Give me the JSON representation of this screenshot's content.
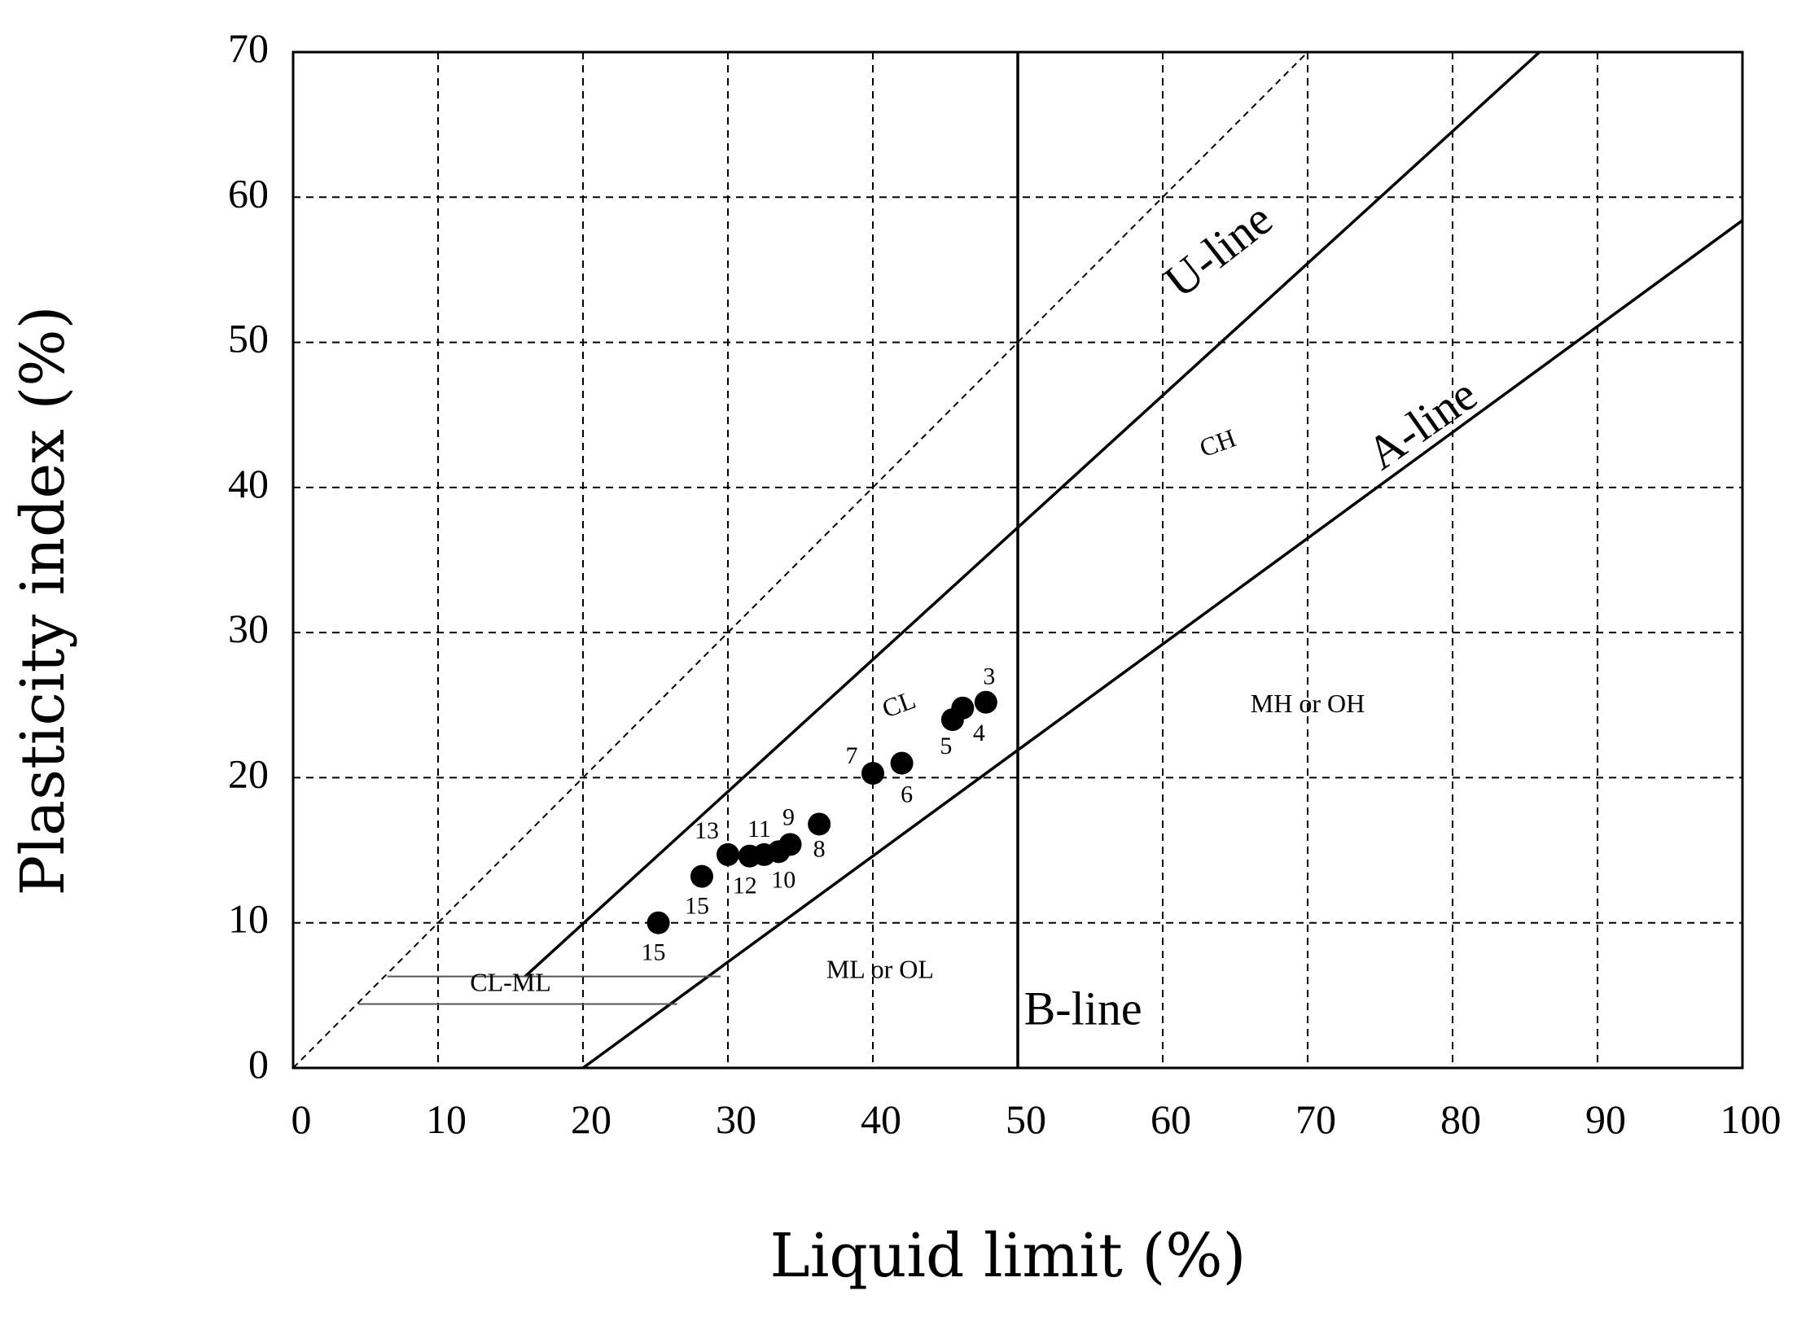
{
  "chart_data": {
    "type": "scatter",
    "xlabel": "Liquid limit (%)",
    "ylabel": "Plasticity index (%)",
    "xlim": [
      0,
      100
    ],
    "ylim": [
      0,
      70
    ],
    "x_ticks": [
      "0",
      "10",
      "20",
      "30",
      "40",
      "50",
      "60",
      "70",
      "80",
      "90",
      "100"
    ],
    "y_ticks": [
      "0",
      "10",
      "20",
      "30",
      "40",
      "50",
      "60",
      "70"
    ],
    "grid": true,
    "points": [
      {
        "label": "15",
        "x": 25.2,
        "y": 10.0
      },
      {
        "label": "15",
        "x": 28.2,
        "y": 13.2
      },
      {
        "label": "13",
        "x": 30.0,
        "y": 14.7
      },
      {
        "label": "12",
        "x": 31.5,
        "y": 14.6
      },
      {
        "label": "11",
        "x": 32.5,
        "y": 14.7
      },
      {
        "label": "10",
        "x": 33.5,
        "y": 14.9
      },
      {
        "label": "9",
        "x": 34.3,
        "y": 15.4
      },
      {
        "label": "8",
        "x": 36.3,
        "y": 16.8
      },
      {
        "label": "7",
        "x": 40.0,
        "y": 20.3
      },
      {
        "label": "6",
        "x": 42.0,
        "y": 21.0
      },
      {
        "label": "5",
        "x": 45.5,
        "y": 24.0
      },
      {
        "label": "4",
        "x": 46.2,
        "y": 24.8
      },
      {
        "label": "3",
        "x": 47.8,
        "y": 25.2
      }
    ],
    "lines": [
      {
        "name": "U-line",
        "style": "solid",
        "from": [
          16,
          6.3
        ],
        "to": [
          86,
          70
        ]
      },
      {
        "name": "A-line",
        "style": "solid",
        "from": [
          20,
          0
        ],
        "to": [
          100,
          58.4
        ]
      },
      {
        "name": "B-line",
        "style": "solid",
        "from": [
          50,
          0
        ],
        "to": [
          50,
          70
        ]
      },
      {
        "name": "",
        "style": "dashed",
        "from": [
          0,
          0
        ],
        "to": [
          70,
          70
        ]
      }
    ],
    "zones": [
      {
        "label": "CH",
        "x": 64,
        "y": 42.5,
        "rotate": -20
      },
      {
        "label": "CL",
        "x": 42,
        "y": 24.5,
        "rotate": -20
      },
      {
        "label": "MH or OH",
        "x": 70,
        "y": 24.5,
        "rotate": 0
      },
      {
        "label": "ML or OL",
        "x": 40.5,
        "y": 6.2,
        "rotate": 0
      },
      {
        "label": "CL-ML",
        "x": 15,
        "y": 5.3,
        "rotate": 0
      }
    ],
    "line_labels": [
      {
        "text": "U-line",
        "x": 64.5,
        "y": 55.5,
        "rotate": -38
      },
      {
        "text": "A-line",
        "x": 78.5,
        "y": 43.5,
        "rotate": -35
      },
      {
        "text": "B-line",
        "x": 54.5,
        "y": 3.0,
        "rotate": 0
      }
    ],
    "cl_ml_band": [
      {
        "from": [
          4.5,
          4.4
        ],
        "to": [
          26.5,
          4.4
        ]
      },
      {
        "from": [
          6.5,
          6.3
        ],
        "to": [
          29.5,
          6.3
        ]
      }
    ]
  }
}
